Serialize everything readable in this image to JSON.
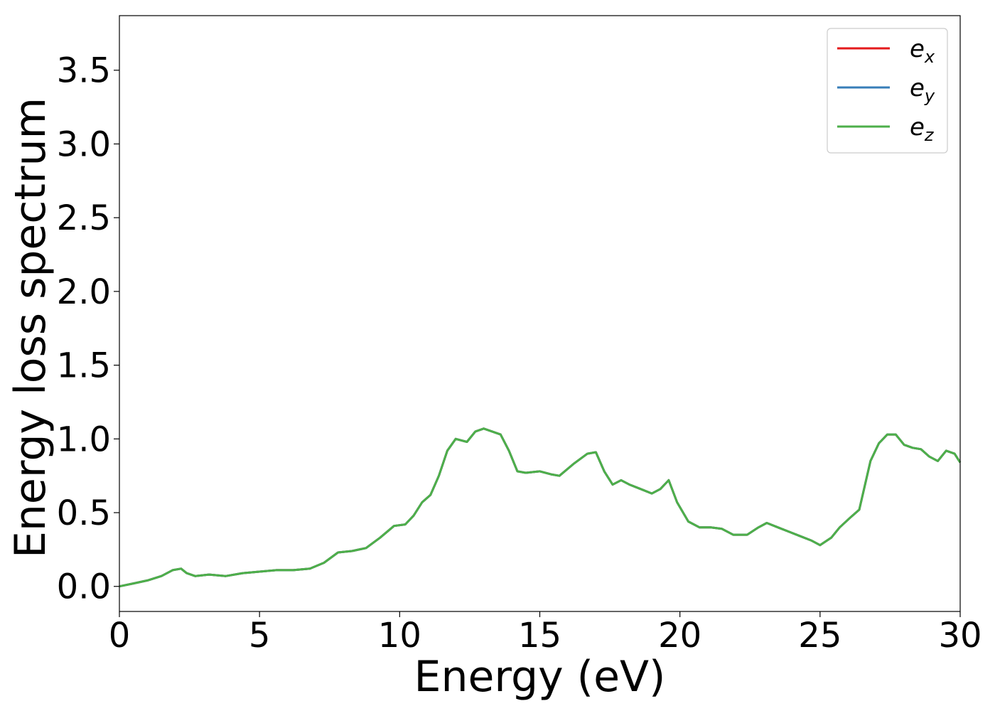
{
  "chart_data": {
    "type": "line",
    "title": "",
    "xlabel": "Energy (eV)",
    "ylabel": "Energy loss spectrum",
    "xlim": [
      0,
      30
    ],
    "ylim": [
      -0.17,
      3.87
    ],
    "xticks": [
      0,
      5,
      10,
      15,
      20,
      25,
      30
    ],
    "xtick_labels": [
      "0",
      "5",
      "10",
      "15",
      "20",
      "25",
      "30"
    ],
    "yticks": [
      0.0,
      0.5,
      1.0,
      1.5,
      2.0,
      2.5,
      3.0,
      3.5
    ],
    "ytick_labels": [
      "0.0",
      "0.5",
      "1.0",
      "1.5",
      "2.0",
      "2.5",
      "3.0",
      "3.5"
    ],
    "grid": false,
    "legend_position": "top-right",
    "x": [
      0,
      0.5,
      1.0,
      1.5,
      1.9,
      2.2,
      2.4,
      2.7,
      3.2,
      3.8,
      4.4,
      5.0,
      5.6,
      6.2,
      6.8,
      7.3,
      7.8,
      8.3,
      8.8,
      9.3,
      9.8,
      10.2,
      10.5,
      10.8,
      11.1,
      11.4,
      11.7,
      12.0,
      12.4,
      12.7,
      13.0,
      13.3,
      13.6,
      13.9,
      14.2,
      14.5,
      15.0,
      15.4,
      15.7,
      16.2,
      16.7,
      17.0,
      17.3,
      17.6,
      17.9,
      18.2,
      18.6,
      19.0,
      19.3,
      19.6,
      19.9,
      20.3,
      20.7,
      21.1,
      21.5,
      21.9,
      22.4,
      22.8,
      23.1,
      23.5,
      23.9,
      24.3,
      24.7,
      25.0,
      25.4,
      25.7,
      26.1,
      26.4,
      26.8,
      27.1,
      27.4,
      27.7,
      28.0,
      28.3,
      28.6,
      28.9,
      29.2,
      29.5,
      29.8,
      30.0
    ],
    "series": [
      {
        "name": "e_x",
        "color": "#e41a1c",
        "y": [
          0.0,
          0.02,
          0.04,
          0.07,
          0.11,
          0.12,
          0.09,
          0.07,
          0.08,
          0.07,
          0.09,
          0.1,
          0.11,
          0.11,
          0.12,
          0.16,
          0.23,
          0.24,
          0.26,
          0.33,
          0.41,
          0.42,
          0.48,
          0.57,
          0.62,
          0.75,
          0.92,
          1.0,
          0.98,
          1.05,
          1.07,
          1.05,
          1.03,
          0.92,
          0.78,
          0.77,
          0.78,
          0.76,
          0.75,
          0.83,
          0.9,
          0.91,
          0.78,
          0.69,
          0.72,
          0.69,
          0.66,
          0.63,
          0.66,
          0.72,
          0.57,
          0.44,
          0.4,
          0.4,
          0.39,
          0.35,
          0.35,
          0.4,
          0.43,
          0.4,
          0.37,
          0.34,
          0.31,
          0.28,
          0.33,
          0.4,
          0.47,
          0.52,
          0.85,
          0.97,
          1.03,
          1.03,
          0.96,
          0.94,
          0.93,
          0.88,
          0.85,
          0.92,
          0.9,
          0.84
        ]
      },
      {
        "name": "e_y",
        "color": "#377eb8",
        "y": [
          0.0,
          0.02,
          0.04,
          0.07,
          0.11,
          0.12,
          0.09,
          0.07,
          0.08,
          0.07,
          0.09,
          0.1,
          0.11,
          0.11,
          0.12,
          0.16,
          0.23,
          0.24,
          0.26,
          0.33,
          0.41,
          0.42,
          0.48,
          0.57,
          0.62,
          0.75,
          0.92,
          1.0,
          0.98,
          1.05,
          1.07,
          1.05,
          1.03,
          0.92,
          0.78,
          0.77,
          0.78,
          0.76,
          0.75,
          0.83,
          0.9,
          0.91,
          0.78,
          0.69,
          0.72,
          0.69,
          0.66,
          0.63,
          0.66,
          0.72,
          0.57,
          0.44,
          0.4,
          0.4,
          0.39,
          0.35,
          0.35,
          0.4,
          0.43,
          0.4,
          0.37,
          0.34,
          0.31,
          0.28,
          0.33,
          0.4,
          0.47,
          0.52,
          0.85,
          0.97,
          1.03,
          1.03,
          0.96,
          0.94,
          0.93,
          0.88,
          0.85,
          0.92,
          0.9,
          0.84
        ]
      },
      {
        "name": "e_z",
        "color": "#4daf4a",
        "y": [
          0.0,
          0.02,
          0.04,
          0.07,
          0.11,
          0.12,
          0.09,
          0.07,
          0.08,
          0.07,
          0.09,
          0.1,
          0.11,
          0.11,
          0.12,
          0.16,
          0.23,
          0.24,
          0.26,
          0.33,
          0.41,
          0.42,
          0.48,
          0.57,
          0.62,
          0.75,
          0.92,
          1.0,
          0.98,
          1.05,
          1.07,
          1.05,
          1.03,
          0.92,
          0.78,
          0.77,
          0.78,
          0.76,
          0.75,
          0.83,
          0.9,
          0.91,
          0.78,
          0.69,
          0.72,
          0.69,
          0.66,
          0.63,
          0.66,
          0.72,
          0.57,
          0.44,
          0.4,
          0.4,
          0.39,
          0.35,
          0.35,
          0.4,
          0.43,
          0.4,
          0.37,
          0.34,
          0.31,
          0.28,
          0.33,
          0.4,
          0.47,
          0.52,
          0.85,
          0.97,
          1.03,
          1.03,
          0.96,
          0.94,
          0.93,
          0.88,
          0.85,
          0.92,
          0.9,
          0.84
        ]
      }
    ],
    "legend": [
      {
        "base": "e",
        "sub": "x",
        "color": "#e41a1c"
      },
      {
        "base": "e",
        "sub": "y",
        "color": "#377eb8"
      },
      {
        "base": "e",
        "sub": "z",
        "color": "#4daf4a"
      }
    ]
  }
}
